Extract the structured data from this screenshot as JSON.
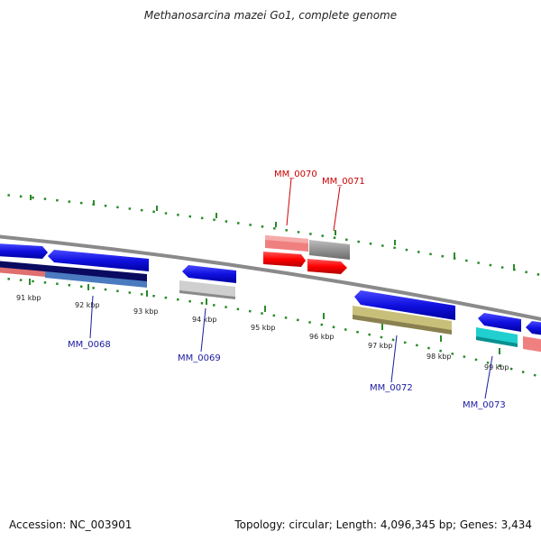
{
  "title": "Methanosarcina mazei Go1, complete genome",
  "footer": {
    "accession": "Accession: NC_003901",
    "summary": "Topology: circular; Length: 4,096,345 bp; Genes: 3,434"
  },
  "ruler": {
    "labels": [
      "91 kbp",
      "92 kbp",
      "93 kbp",
      "94 kbp",
      "95 kbp",
      "96 kbp",
      "97 kbp",
      "98 kbp",
      "99 kbp"
    ]
  },
  "genes": {
    "mm0068": "MM_0068",
    "mm0069": "MM_0069",
    "mm0070": "MM_0070",
    "mm0071": "MM_0071",
    "mm0072": "MM_0072",
    "mm0073": "MM_0073"
  },
  "colors": {
    "forward_gene": "#1010e0",
    "highlight_gene": "#ff0000",
    "backbone": "#808080",
    "ticks": "#2a8a2a",
    "label_blue": "#1a1aa0",
    "label_red": "#cc0000"
  }
}
